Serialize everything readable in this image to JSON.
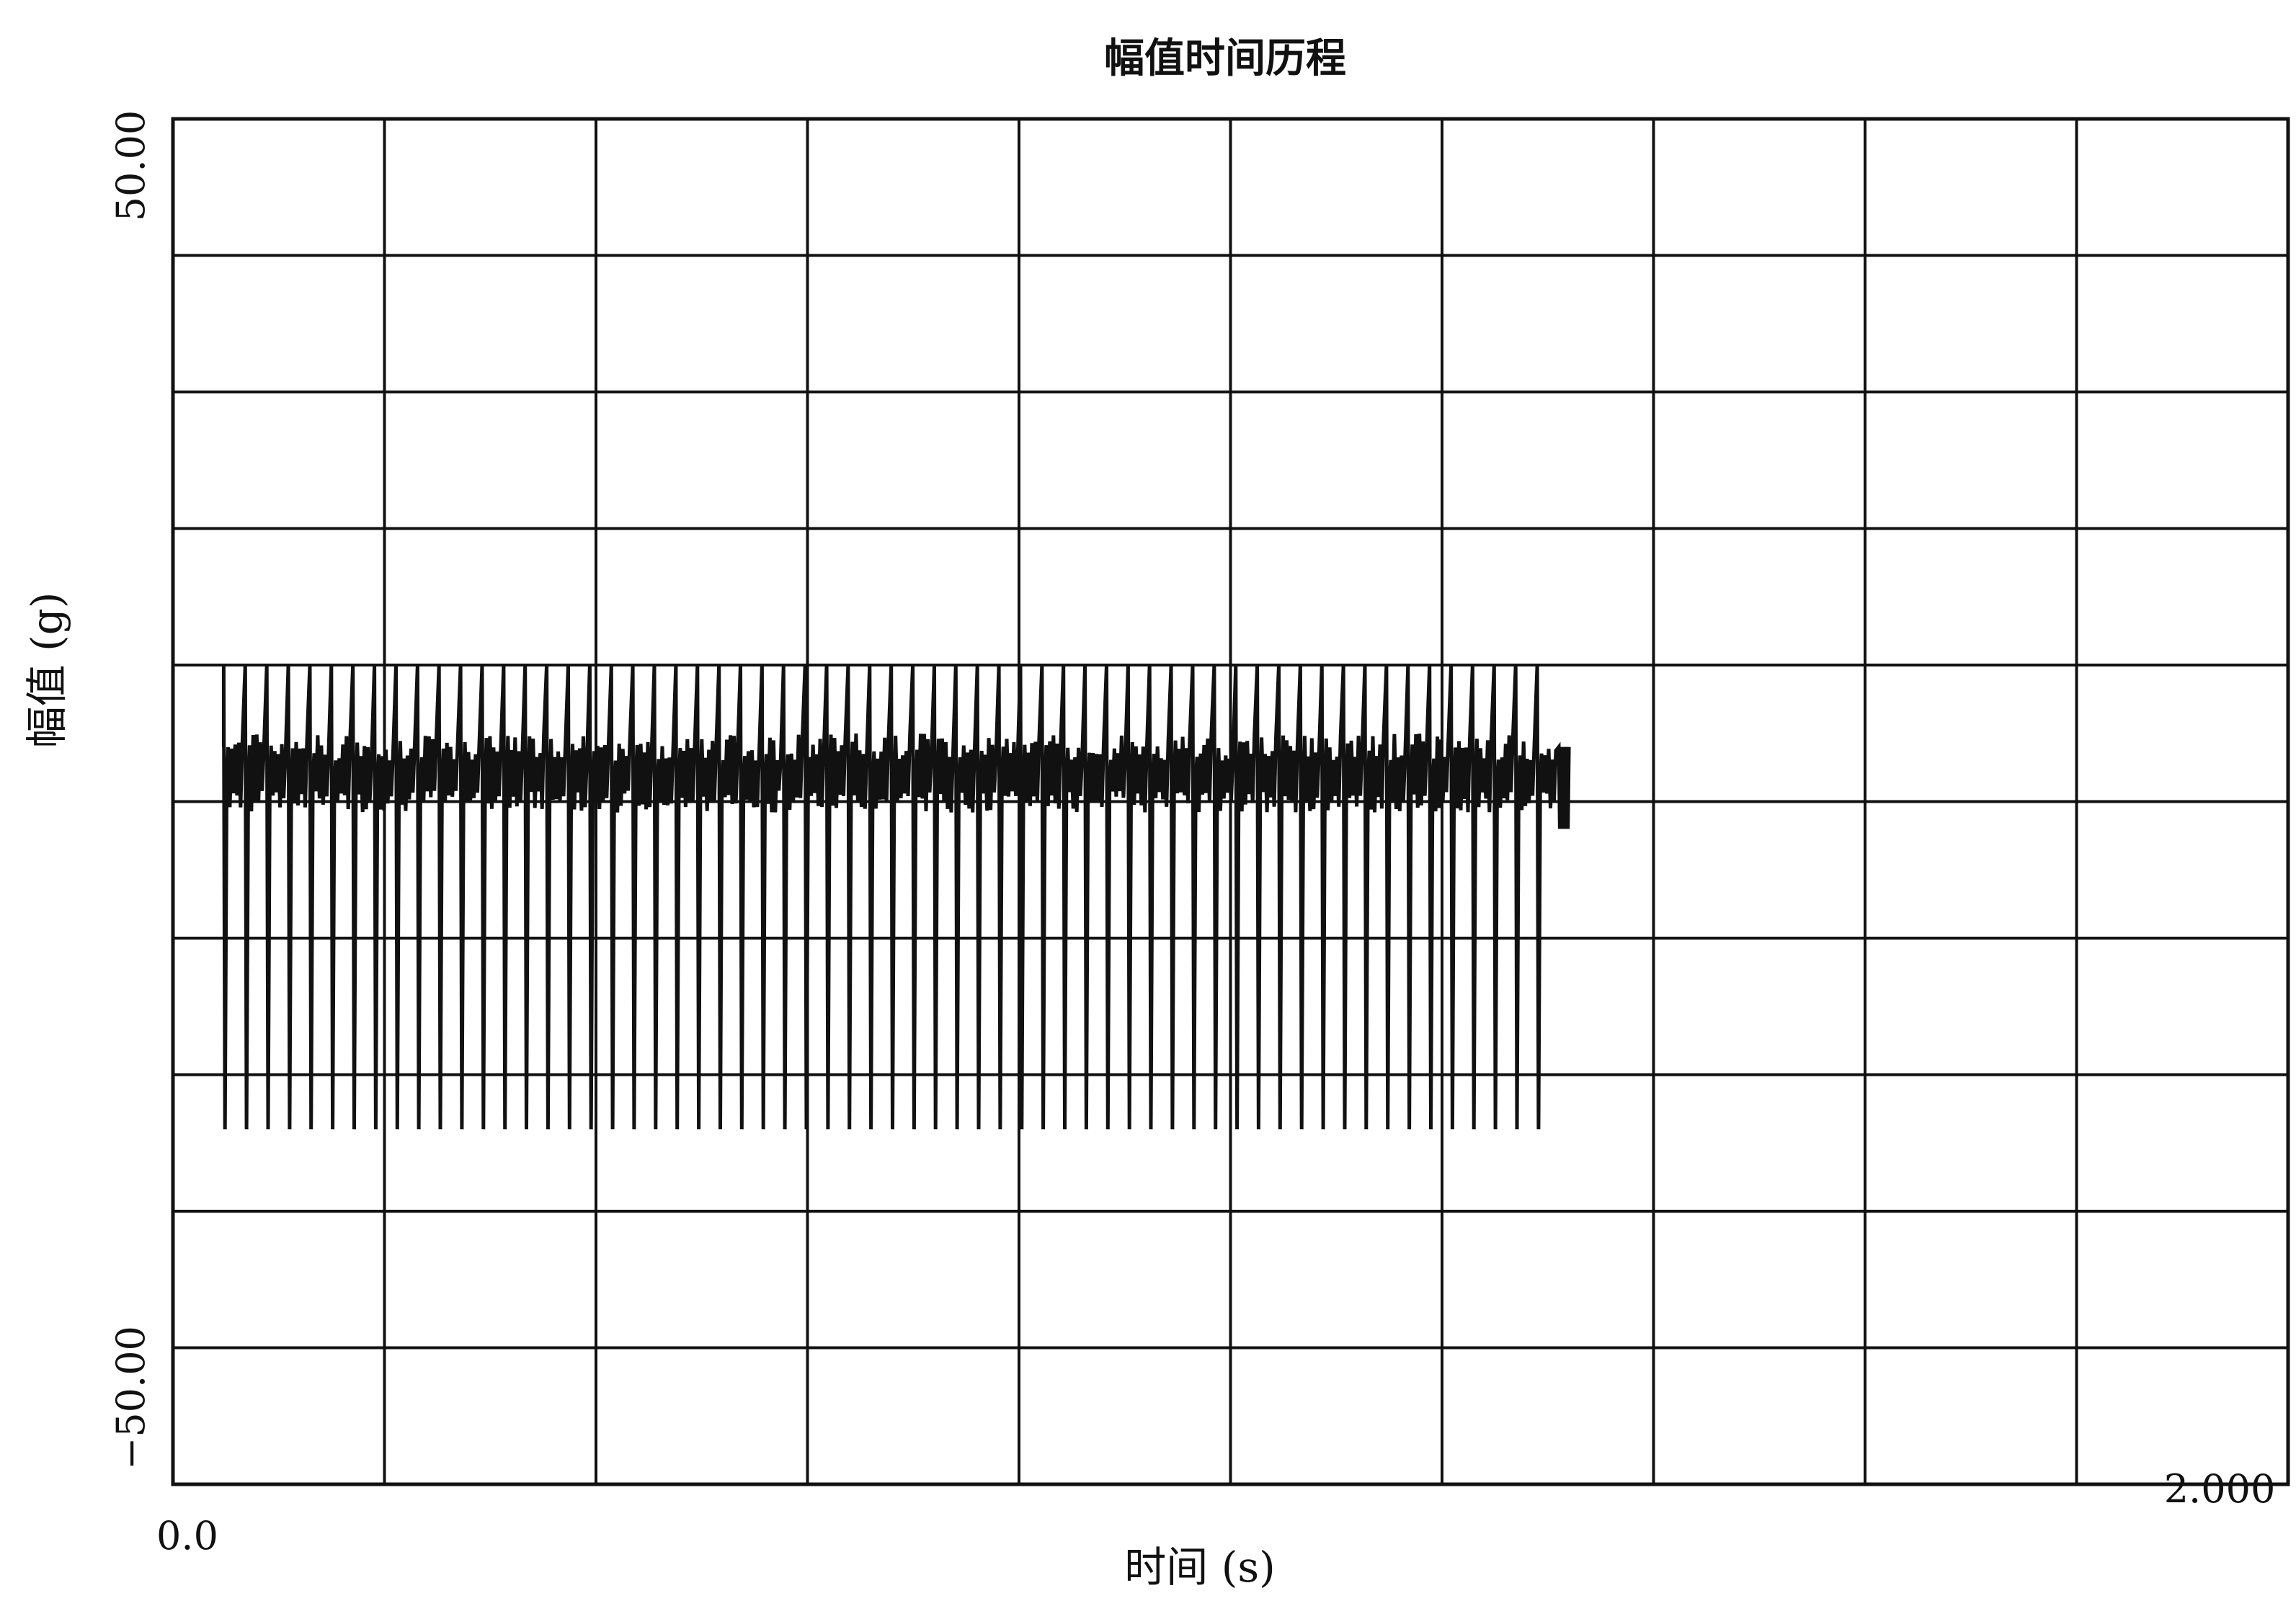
{
  "chart_data": {
    "type": "line",
    "title": "幅值时间历程",
    "xlabel": "时间 (s)",
    "ylabel": "幅值 (g)",
    "xlim": [
      0.0,
      2.0
    ],
    "ylim": [
      -50.0,
      50.0
    ],
    "x_tick_labels": [
      "0.0",
      "2.000"
    ],
    "y_tick_labels": [
      "50.00",
      "−50.00"
    ],
    "grid": true,
    "grid_divisions_x": 10,
    "grid_divisions_y": 10,
    "line_color": "#111111",
    "signal": {
      "description": "",
      "start_s": 0.048,
      "end_s": 1.29,
      "impulses": 62,
      "peak_max_g": 10.0,
      "peak_min_g": -24.0,
      "ringing_upper_g": 4.0,
      "ringing_lower_g": 0.0,
      "tail_end_s": 1.32,
      "tail_level_g": 2.0
    }
  }
}
